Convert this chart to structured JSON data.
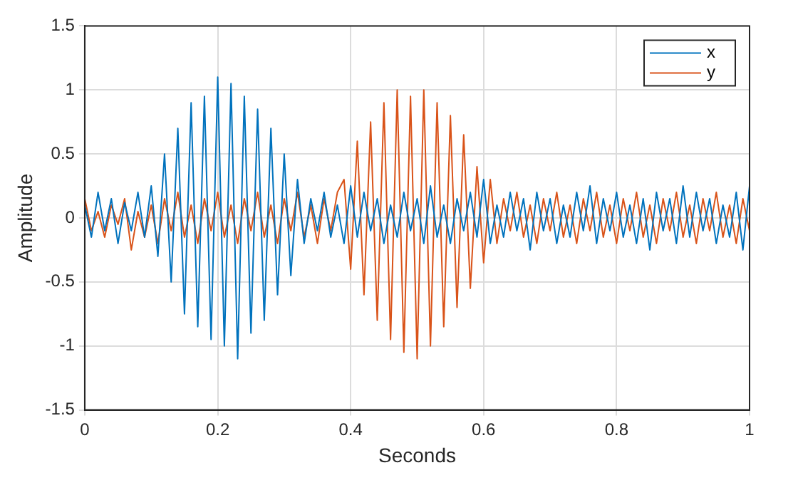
{
  "chart_data": {
    "type": "line",
    "xlabel": "Seconds",
    "ylabel": "Amplitude",
    "x": [
      0,
      0.01,
      0.02,
      0.03,
      0.04,
      0.05,
      0.06,
      0.07,
      0.08,
      0.09,
      0.1,
      0.11,
      0.12,
      0.13,
      0.14,
      0.15,
      0.16,
      0.17,
      0.18,
      0.19,
      0.2,
      0.21,
      0.22,
      0.23,
      0.24,
      0.25,
      0.26,
      0.27,
      0.28,
      0.29,
      0.3,
      0.31,
      0.32,
      0.33,
      0.34,
      0.35,
      0.36,
      0.37,
      0.38,
      0.39,
      0.4,
      0.41,
      0.42,
      0.43,
      0.44,
      0.45,
      0.46,
      0.47,
      0.48,
      0.49,
      0.5,
      0.51,
      0.52,
      0.53,
      0.54,
      0.55,
      0.56,
      0.57,
      0.58,
      0.59,
      0.6,
      0.61,
      0.62,
      0.63,
      0.64,
      0.65,
      0.66,
      0.67,
      0.68,
      0.69,
      0.7,
      0.71,
      0.72,
      0.73,
      0.74,
      0.75,
      0.76,
      0.77,
      0.78,
      0.79,
      0.8,
      0.81,
      0.82,
      0.83,
      0.84,
      0.85,
      0.86,
      0.87,
      0.88,
      0.89,
      0.9,
      0.91,
      0.92,
      0.93,
      0.94,
      0.95,
      0.96,
      0.97,
      0.98,
      0.99,
      1
    ],
    "series": [
      {
        "name": "x",
        "color": "#0072bd",
        "values": [
          0.1,
          -0.15,
          0.2,
          -0.1,
          0.15,
          -0.2,
          0.12,
          -0.1,
          0.2,
          -0.15,
          0.25,
          -0.3,
          0.5,
          -0.5,
          0.7,
          -0.75,
          0.9,
          -0.85,
          0.95,
          -0.95,
          1.1,
          -1.0,
          1.05,
          -1.1,
          0.95,
          -0.9,
          0.85,
          -0.8,
          0.7,
          -0.6,
          0.5,
          -0.45,
          0.3,
          -0.2,
          0.15,
          -0.1,
          0.2,
          -0.15,
          0.1,
          -0.2,
          0.25,
          -0.15,
          0.2,
          -0.1,
          0.15,
          -0.2,
          0.1,
          -0.15,
          0.2,
          -0.1,
          0.15,
          -0.2,
          0.25,
          -0.15,
          0.1,
          -0.2,
          0.15,
          -0.1,
          0.2,
          -0.15,
          0.3,
          -0.2,
          0.1,
          -0.15,
          0.2,
          -0.1,
          0.15,
          -0.25,
          0.2,
          -0.1,
          0.15,
          -0.2,
          0.1,
          -0.15,
          0.2,
          -0.1,
          0.25,
          -0.2,
          0.15,
          -0.1,
          0.2,
          -0.15,
          0.1,
          -0.2,
          0.15,
          -0.25,
          0.2,
          -0.1,
          0.15,
          -0.2,
          0.25,
          -0.15,
          0.2,
          -0.1,
          0.15,
          -0.2,
          0.1,
          -0.15,
          0.2,
          -0.25,
          0.25
        ]
      },
      {
        "name": "y",
        "color": "#d95319",
        "values": [
          0.15,
          -0.1,
          0.05,
          -0.15,
          0.1,
          -0.05,
          0.15,
          -0.25,
          0.05,
          -0.15,
          0.1,
          -0.2,
          0.15,
          -0.1,
          0.2,
          -0.15,
          0.1,
          -0.2,
          0.15,
          -0.1,
          0.2,
          -0.15,
          0.1,
          -0.2,
          0.15,
          -0.1,
          0.2,
          -0.15,
          0.1,
          -0.2,
          0.15,
          -0.1,
          0.2,
          -0.15,
          0.1,
          -0.2,
          0.15,
          -0.1,
          0.2,
          0.3,
          -0.4,
          0.6,
          -0.6,
          0.75,
          -0.8,
          0.9,
          -0.95,
          1.0,
          -1.05,
          0.95,
          -1.1,
          1.0,
          -1.0,
          0.9,
          -0.85,
          0.8,
          -0.7,
          0.65,
          -0.55,
          0.4,
          -0.35,
          0.3,
          -0.2,
          0.15,
          -0.1,
          0.2,
          -0.15,
          0.1,
          -0.2,
          0.15,
          -0.1,
          0.2,
          -0.15,
          0.1,
          -0.2,
          0.15,
          -0.1,
          0.2,
          -0.15,
          0.1,
          -0.2,
          0.15,
          -0.1,
          0.2,
          -0.15,
          0.1,
          -0.2,
          0.15,
          -0.1,
          0.2,
          -0.15,
          0.1,
          -0.2,
          0.15,
          -0.1,
          0.2,
          -0.15,
          0.1,
          -0.2,
          0.15,
          -0.1
        ]
      }
    ],
    "xlim": [
      0,
      1
    ],
    "xticks": [
      0,
      0.2,
      0.4,
      0.6,
      0.8,
      1
    ],
    "ylim": [
      -1.5,
      1.5
    ],
    "yticks": [
      -1.5,
      -1,
      -0.5,
      0,
      0.5,
      1,
      1.5
    ],
    "grid": true,
    "legend": "top right",
    "marker": "none",
    "line_style": "solid"
  }
}
